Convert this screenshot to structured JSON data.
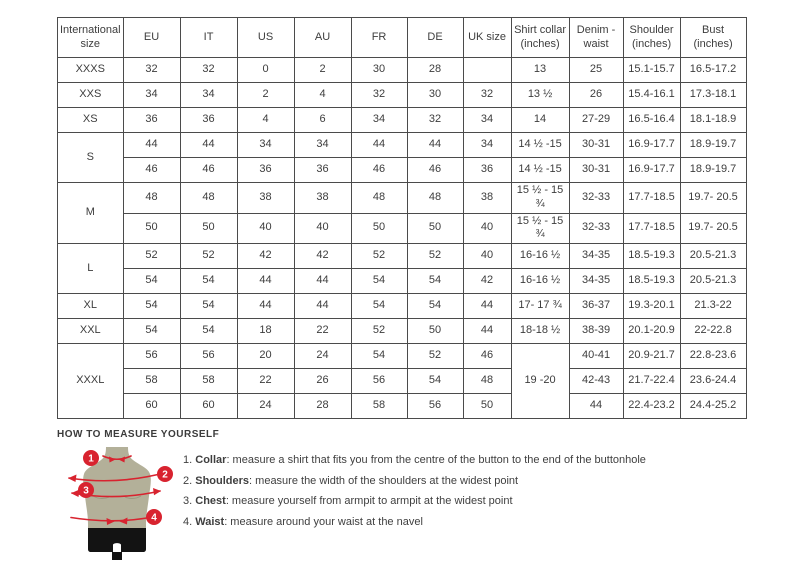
{
  "colors": {
    "accent_red": "#d8232f",
    "mannequin": "#b3b099",
    "mannequin_shade": "#9c997f",
    "shorts": "#131313",
    "border": "#4b4b4b",
    "text": "#3d3d3d"
  },
  "table": {
    "headers": [
      "International size",
      "EU",
      "IT",
      "US",
      "AU",
      "FR",
      "DE",
      "UK size",
      "Shirt collar (inches)",
      "Denim - waist",
      "Shoulder (inches)",
      "Bust (inches)"
    ],
    "rows": [
      [
        "XXXS",
        "32",
        "32",
        "0",
        "2",
        "30",
        "28",
        "",
        "13",
        "25",
        "15.1-15.7",
        "16.5-17.2"
      ],
      [
        "XXS",
        "34",
        "34",
        "2",
        "4",
        "32",
        "30",
        "32",
        "13 ½",
        "26",
        "15.4-16.1",
        "17.3-18.1"
      ],
      [
        "XS",
        "36",
        "36",
        "4",
        "6",
        "34",
        "32",
        "34",
        "14",
        "27-29",
        "16.5-16.4",
        "18.1-18.9"
      ],
      [
        {
          "t": "S",
          "rs": 2
        },
        "44",
        "44",
        "34",
        "34",
        "44",
        "44",
        "34",
        "14 ½ -15",
        "30-31",
        "16.9-17.7",
        "18.9-19.7"
      ],
      [
        "46",
        "46",
        "36",
        "36",
        "46",
        "46",
        "36",
        "14 ½ -15",
        "30-31",
        "16.9-17.7",
        "18.9-19.7"
      ],
      [
        {
          "t": "M",
          "rs": 2
        },
        "48",
        "48",
        "38",
        "38",
        "48",
        "48",
        "38",
        "15 ½ - 15 ¾",
        "32-33",
        "17.7-18.5",
        "19.7- 20.5"
      ],
      [
        "50",
        "50",
        "40",
        "40",
        "50",
        "50",
        "40",
        "15 ½ - 15 ¾",
        "32-33",
        "17.7-18.5",
        "19.7- 20.5"
      ],
      [
        {
          "t": "L",
          "rs": 2
        },
        "52",
        "52",
        "42",
        "42",
        "52",
        "52",
        "40",
        "16-16 ½",
        "34-35",
        "18.5-19.3",
        "20.5-21.3"
      ],
      [
        "54",
        "54",
        "44",
        "44",
        "54",
        "54",
        "42",
        "16-16 ½",
        "34-35",
        "18.5-19.3",
        "20.5-21.3"
      ],
      [
        "XL",
        "54",
        "54",
        "44",
        "44",
        "54",
        "54",
        "44",
        "17- 17 ¾",
        "36-37",
        "19.3-20.1",
        "21.3-22"
      ],
      [
        "XXL",
        "54",
        "54",
        "18",
        "22",
        "52",
        "50",
        "44",
        "18-18 ½",
        "38-39",
        "20.1-20.9",
        "22-22.8"
      ],
      [
        {
          "t": "XXXL",
          "rs": 3
        },
        "56",
        "56",
        "20",
        "24",
        "54",
        "52",
        "46",
        {
          "t": "19 -20",
          "rs": 3
        },
        "40-41",
        "20.9-21.7",
        "22.8-23.6"
      ],
      [
        "58",
        "58",
        "22",
        "26",
        "56",
        "54",
        "48",
        "42-43",
        "21.7-22.4",
        "23.6-24.4"
      ],
      [
        "60",
        "60",
        "24",
        "28",
        "58",
        "56",
        "50",
        "44",
        "22.4-23.2",
        "24.4-25.2"
      ]
    ]
  },
  "measure": {
    "heading": "HOW TO MEASURE YOURSELF",
    "items": [
      {
        "num": "1.",
        "label": "Collar",
        "text": ": measure a shirt that fits you from the centre of the button to the end of the buttonhole"
      },
      {
        "num": "2.",
        "label": "Shoulders",
        "text": ": measure the width of the shoulders at the widest point"
      },
      {
        "num": "3.",
        "label": "Chest",
        "text": ": measure yourself from armpit to armpit at the widest point"
      },
      {
        "num": "4.",
        "label": "Waist",
        "text": ": measure around your waist at the navel"
      }
    ],
    "figure": {
      "markers": [
        "1",
        "2",
        "3",
        "4"
      ]
    }
  }
}
